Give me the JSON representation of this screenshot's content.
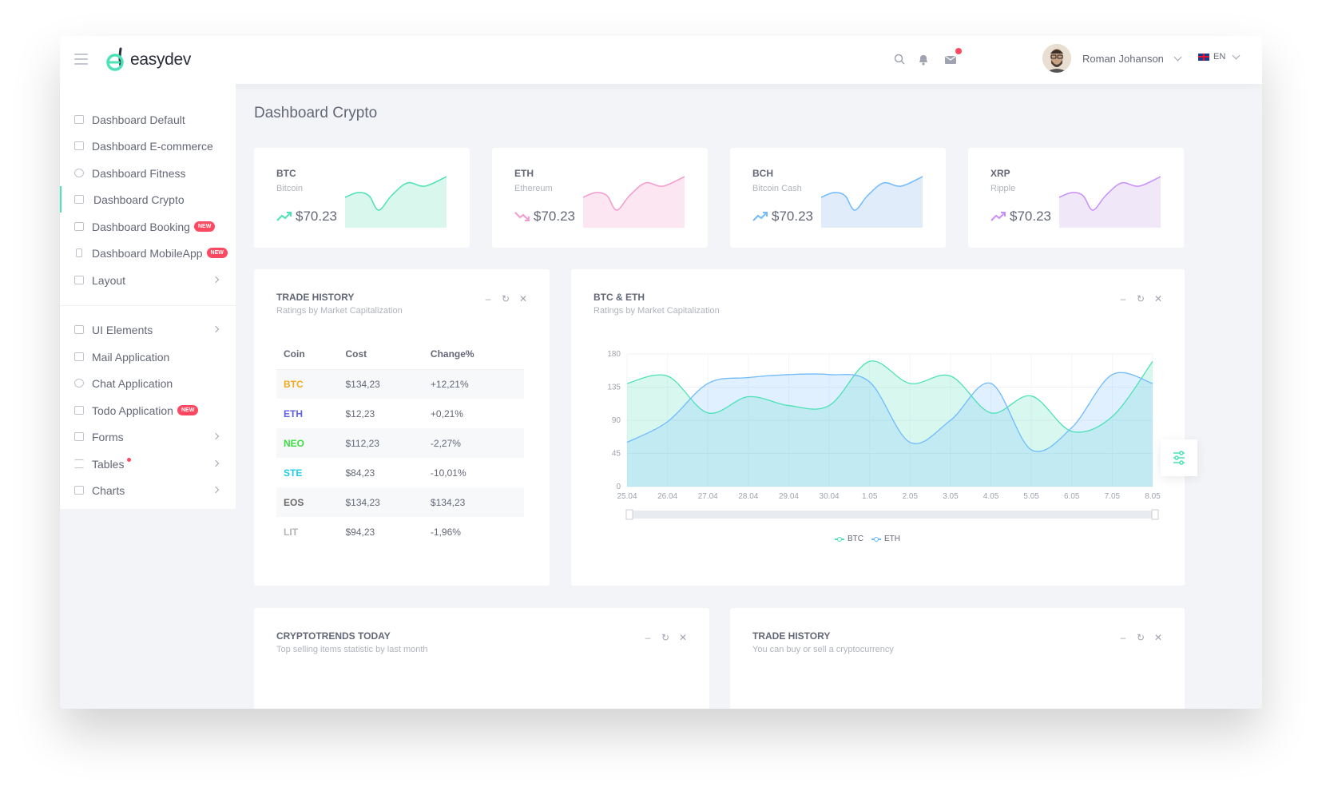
{
  "header": {
    "logo_text": "easydev",
    "user_name": "Roman Johanson",
    "language": "EN"
  },
  "sidebar": {
    "items": [
      {
        "label": "Dashboard Default"
      },
      {
        "label": "Dashboard E-commerce"
      },
      {
        "label": "Dashboard Fitness"
      },
      {
        "label": "Dashboard Crypto",
        "active": true
      },
      {
        "label": "Dashboard Booking",
        "badge": "NEW"
      },
      {
        "label": "Dashboard MobileApp",
        "badge": "NEW"
      },
      {
        "label": "Layout"
      },
      {
        "label": "UI Elements"
      },
      {
        "label": "Mail Application"
      },
      {
        "label": "Chat Application"
      },
      {
        "label": "Todo Application",
        "badge": "NEW"
      },
      {
        "label": "Forms"
      },
      {
        "label": "Tables"
      },
      {
        "label": "Charts"
      }
    ]
  },
  "page": {
    "title": "Dashboard Crypto"
  },
  "coins": [
    {
      "symbol": "BTC",
      "name": "Bitcoin",
      "price": "$70.23",
      "trend": "up",
      "color": "#4ce1b6",
      "fill": "#daf7ee"
    },
    {
      "symbol": "ETH",
      "name": "Ethereum",
      "price": "$70.23",
      "trend": "down",
      "color": "#f59acc",
      "fill": "#fce6f2"
    },
    {
      "symbol": "BCH",
      "name": "Bitcoin Cash",
      "price": "$70.23",
      "trend": "up",
      "color": "#70bbfd",
      "fill": "#e0ecf9"
    },
    {
      "symbol": "XRP",
      "name": "Ripple",
      "price": "$70.23",
      "trend": "up",
      "color": "#c88ffa",
      "fill": "#f0e8f9"
    }
  ],
  "trade_history": {
    "title": "TRADE HISTORY",
    "subtitle": "Ratings by Market Capitalization",
    "headers": [
      "Coin",
      "Cost",
      "Change%"
    ],
    "rows": [
      {
        "coin": "BTC",
        "cost": "$134,23",
        "change": "+12,21%",
        "color": "#f6a81e"
      },
      {
        "coin": "ETH",
        "cost": "$12,23",
        "change": "+0,21%",
        "color": "#5e62e6"
      },
      {
        "coin": "NEO",
        "cost": "$112,23",
        "change": "-2,27%",
        "color": "#3ddb42"
      },
      {
        "coin": "STE",
        "cost": "$84,23",
        "change": "-10,01%",
        "color": "#21cbe6"
      },
      {
        "coin": "EOS",
        "cost": "$134,23",
        "change": "$134,23",
        "color": "#6d6a6a"
      },
      {
        "coin": "LIT",
        "cost": "$94,23",
        "change": "-1,96%",
        "color": "#b7b3b3"
      }
    ]
  },
  "btc_eth": {
    "title": "BTC & ETH",
    "subtitle": "Ratings by Market Capitalization"
  },
  "cryptotrends": {
    "title": "CRYPTOTRENDS TODAY",
    "subtitle": "Top selling items statistic by last month"
  },
  "trade_history_2": {
    "title": "TRADE HISTORY",
    "subtitle": "You can buy or sell a cryptocurrency"
  },
  "chart_data": {
    "type": "area",
    "x": [
      "25.04",
      "26.04",
      "27.04",
      "28.04",
      "29.04",
      "30.04",
      "1.05",
      "2.05",
      "3.05",
      "4.05",
      "5.05",
      "6.05",
      "7.05",
      "8.05"
    ],
    "yticks": [
      0,
      45,
      90,
      135,
      180
    ],
    "ylim": [
      0,
      180
    ],
    "series": [
      {
        "name": "BTC",
        "color": "#4ce1b6",
        "values": [
          140,
          150,
          100,
          122,
          110,
          110,
          170,
          140,
          150,
          100,
          123,
          75,
          95,
          170
        ]
      },
      {
        "name": "ETH",
        "color": "#70bbfd",
        "values": [
          60,
          88,
          140,
          148,
          152,
          152,
          142,
          60,
          90,
          140,
          50,
          80,
          152,
          140
        ]
      }
    ],
    "legend_position": "bottom"
  }
}
